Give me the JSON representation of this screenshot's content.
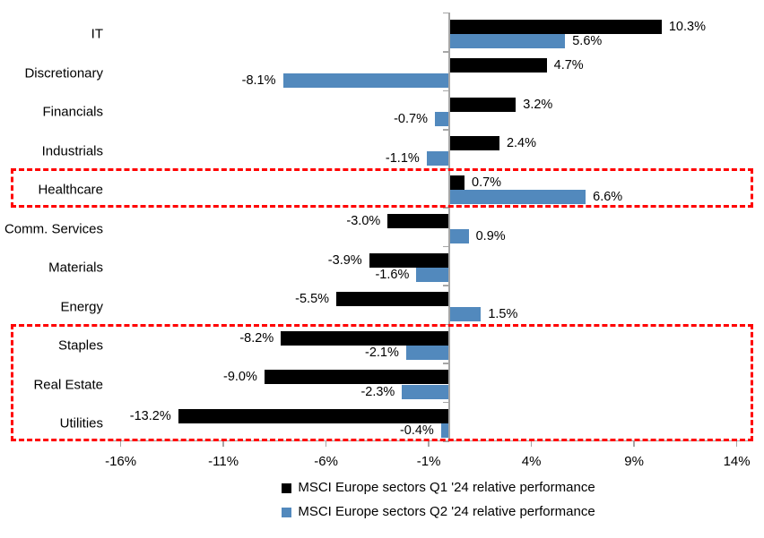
{
  "chart_data": {
    "type": "bar",
    "orientation": "horizontal",
    "title": "",
    "xlabel": "",
    "ylabel": "",
    "categories": [
      "IT",
      "Discretionary",
      "Financials",
      "Industrials",
      "Healthcare",
      "Comm. Services",
      "Materials",
      "Energy",
      "Staples",
      "Real Estate",
      "Utilities"
    ],
    "series": [
      {
        "name": "MSCI Europe sectors Q1 '24 relative performance",
        "color": "#000000",
        "values": [
          10.3,
          4.7,
          3.2,
          2.4,
          0.7,
          -3.0,
          -3.9,
          -5.5,
          -8.2,
          -9.0,
          -13.2
        ]
      },
      {
        "name": "MSCI Europe sectors Q2 '24 relative performance",
        "color": "#5289BD",
        "values": [
          5.6,
          -8.1,
          -0.7,
          -1.1,
          6.6,
          0.9,
          -1.6,
          1.5,
          -2.1,
          -2.3,
          -0.4
        ]
      }
    ],
    "x_ticks": [
      {
        "label": "-16%",
        "value": -16
      },
      {
        "label": "-11%",
        "value": -11
      },
      {
        "label": "-6%",
        "value": -6
      },
      {
        "label": "-1%",
        "value": -1
      },
      {
        "label": "4%",
        "value": 4
      },
      {
        "label": "9%",
        "value": 9
      },
      {
        "label": "14%",
        "value": 14
      }
    ],
    "xlim": [
      -16.5,
      14.5
    ],
    "grid": false,
    "data_labels": true,
    "data_label_format": "one-decimal-percent",
    "legend_position": "bottom",
    "highlights": [
      {
        "categories": [
          "Healthcare"
        ]
      },
      {
        "categories": [
          "Staples",
          "Real Estate",
          "Utilities"
        ]
      }
    ],
    "highlight_color": "#FF0000",
    "axis_color": "#A6A6A6",
    "background_color": "#FFFFFF",
    "text_color": "#000000"
  }
}
